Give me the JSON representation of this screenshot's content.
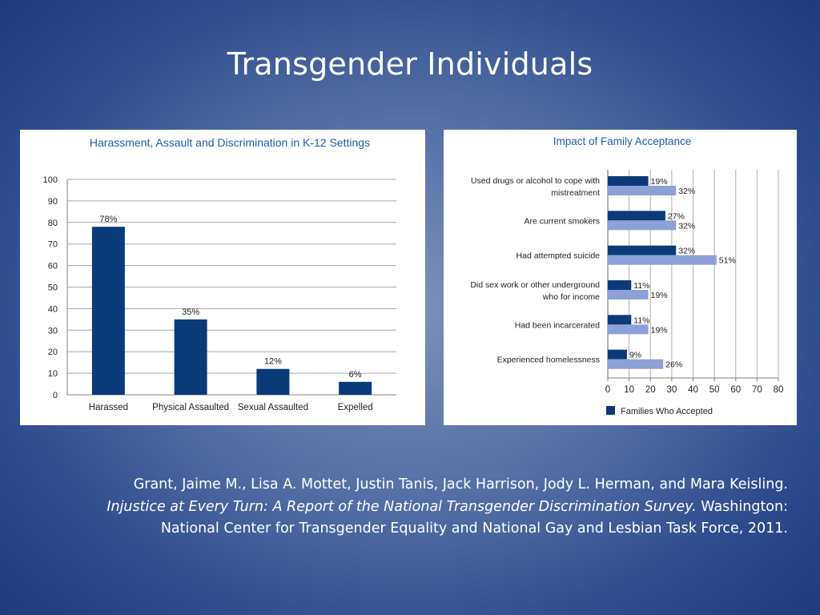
{
  "slide": {
    "title": "Transgender Individuals"
  },
  "colors": {
    "dark_bar": "#0b3a78",
    "light_bar": "#8ea0d8",
    "title_blue": "#1f5cab",
    "grid": "#9a9a9a"
  },
  "chart_data": [
    {
      "type": "bar",
      "title": "Harassment, Assault and Discrimination in K-12 Settings",
      "categories": [
        "Harassed",
        "Physical Assaulted",
        "Sexual Assaulted",
        "Expelled"
      ],
      "values": [
        78,
        35,
        12,
        6
      ],
      "data_labels": [
        "78%",
        "35%",
        "12%",
        "6%"
      ],
      "ylim": [
        0,
        100
      ],
      "yticks": [
        0,
        10,
        20,
        30,
        40,
        50,
        60,
        70,
        80,
        90,
        100
      ],
      "grid": true,
      "legend": "none"
    },
    {
      "type": "bar",
      "orientation": "horizontal",
      "title": "Impact of Family Acceptance",
      "categories": [
        [
          "Used drugs or alcohol to cope with",
          "mistreatment"
        ],
        [
          "Are current smokers"
        ],
        [
          "Had attempted suicide"
        ],
        [
          "Did sex work or other underground",
          "who for income"
        ],
        [
          "Had been incarcerated"
        ],
        [
          "Experienced homelessness"
        ]
      ],
      "series": [
        {
          "name": "Families Who Accepted",
          "values": [
            19,
            27,
            32,
            11,
            11,
            9
          ],
          "labels": [
            "19%",
            "27%",
            "32%",
            "11%",
            "11%",
            "9%"
          ]
        },
        {
          "values": [
            32,
            32,
            51,
            19,
            19,
            26
          ],
          "labels": [
            "32%",
            "32%",
            "51%",
            "19%",
            "19%",
            "26%"
          ]
        }
      ],
      "xlim": [
        0,
        80
      ],
      "xticks": [
        0,
        10,
        20,
        30,
        40,
        50,
        60,
        70,
        80
      ],
      "grid": true,
      "legend": "bottom"
    }
  ],
  "citation": {
    "line1": "Grant, Jaime M., Lisa A. Mottet, Justin Tanis, Jack Harrison, Jody L. Herman, and Mara Keisling.",
    "line2_italic": "Injustice at Every Turn: A Report of the National Transgender Discrimination Survey.",
    "line2_rest": " Washington:",
    "line3": "National Center for Transgender Equality and National Gay and Lesbian Task Force, 2011."
  }
}
